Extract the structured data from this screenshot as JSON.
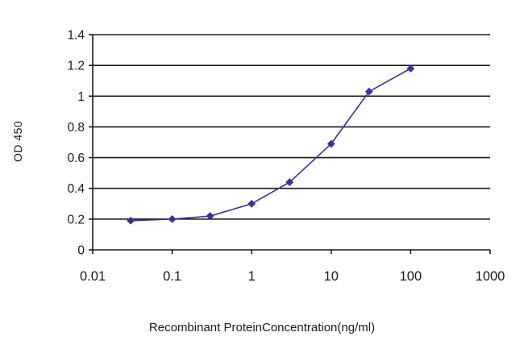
{
  "chart_data": {
    "type": "line",
    "title": "",
    "xlabel": "Recombinant ProteinConcentration(ng/ml)",
    "ylabel": "OD 450",
    "xscale": "log",
    "xlim": [
      0.01,
      1000
    ],
    "ylim": [
      0,
      1.4
    ],
    "xticks": [
      0.01,
      0.1,
      1,
      10,
      100,
      1000
    ],
    "xtick_labels": [
      "0.01",
      "0.1",
      "1",
      "10",
      "100",
      "1000"
    ],
    "yticks": [
      0,
      0.2,
      0.4,
      0.6,
      0.8,
      1,
      1.2,
      1.4
    ],
    "ytick_labels": [
      "0",
      "0.2",
      "0.4",
      "0.6",
      "0.8",
      "1",
      "1.2",
      "1.4"
    ],
    "grid": "horizontal",
    "grid_color": "#1a1a1a",
    "axis_color": "#1a1a1a",
    "line_color": "#333399",
    "marker": "diamond",
    "marker_color": "#333399",
    "legend": "none",
    "x": [
      0.03,
      0.1,
      0.3,
      1,
      3,
      10,
      30,
      100
    ],
    "series": [
      {
        "name": "OD 450",
        "values": [
          0.19,
          0.2,
          0.22,
          0.3,
          0.44,
          0.69,
          1.03,
          1.18
        ]
      }
    ]
  }
}
